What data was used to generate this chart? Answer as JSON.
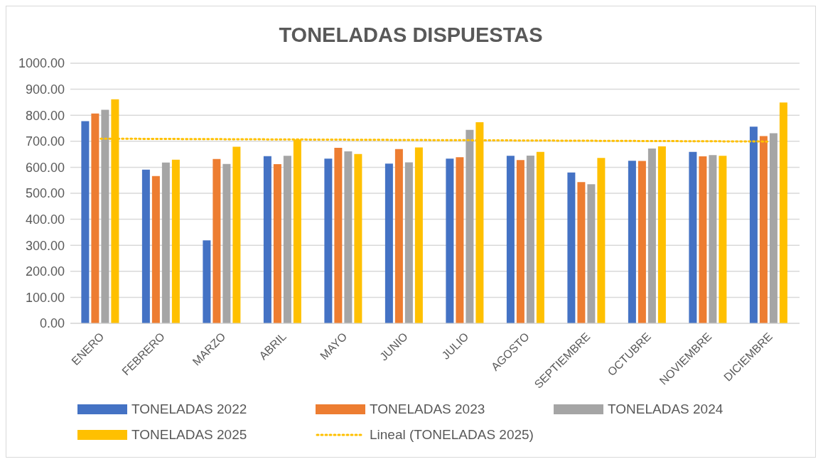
{
  "chart_data": {
    "type": "bar",
    "title": "TONELADAS DISPUESTAS",
    "categories": [
      "ENERO",
      "FEBRERO",
      "MARZO",
      "ABRIL",
      "MAYO",
      "JUNIO",
      "JULIO",
      "AGOSTO",
      "SEPTIEMBRE",
      "OCTUBRE",
      "NOVIEMBRE",
      "DICIEMBRE"
    ],
    "series": [
      {
        "name": "TONELADAS 2022",
        "color": "#4472c4",
        "values": [
          777,
          591,
          319,
          643,
          633,
          614,
          633,
          644,
          580,
          625,
          659,
          756
        ]
      },
      {
        "name": "TONELADAS 2023",
        "color": "#ed7d31",
        "values": [
          807,
          566,
          632,
          612,
          675,
          670,
          639,
          628,
          543,
          624,
          642,
          720
        ]
      },
      {
        "name": "TONELADAS 2024",
        "color": "#a5a5a5",
        "values": [
          821,
          618,
          613,
          644,
          661,
          619,
          744,
          645,
          535,
          672,
          647,
          731
        ]
      },
      {
        "name": "TONELADAS 2025",
        "color": "#ffc000",
        "values": [
          861,
          629,
          679,
          707,
          651,
          676,
          773,
          659,
          636,
          680,
          644,
          849
        ]
      },
      {
        "name": "Lineal (TONELADAS 2025)",
        "type": "line",
        "color": "#ffc000",
        "line_style": "dotted",
        "marker": "none",
        "values": [
          710,
          709,
          708,
          707,
          706,
          705,
          704,
          703,
          702,
          701,
          700,
          699
        ]
      }
    ],
    "ylim": [
      0,
      1000
    ],
    "yticks": [
      {
        "value": 0,
        "label": "0.00"
      },
      {
        "value": 100,
        "label": "100.00"
      },
      {
        "value": 200,
        "label": "200.00"
      },
      {
        "value": 300,
        "label": "300.00"
      },
      {
        "value": 400,
        "label": "400.00"
      },
      {
        "value": 500,
        "label": "500.00"
      },
      {
        "value": 600,
        "label": "600.00"
      },
      {
        "value": 700,
        "label": "700.00"
      },
      {
        "value": 800,
        "label": "800.00"
      },
      {
        "value": 900,
        "label": "900.00"
      },
      {
        "value": 1000,
        "label": "1000.00"
      }
    ],
    "grid": "y",
    "legend": "bottom"
  }
}
